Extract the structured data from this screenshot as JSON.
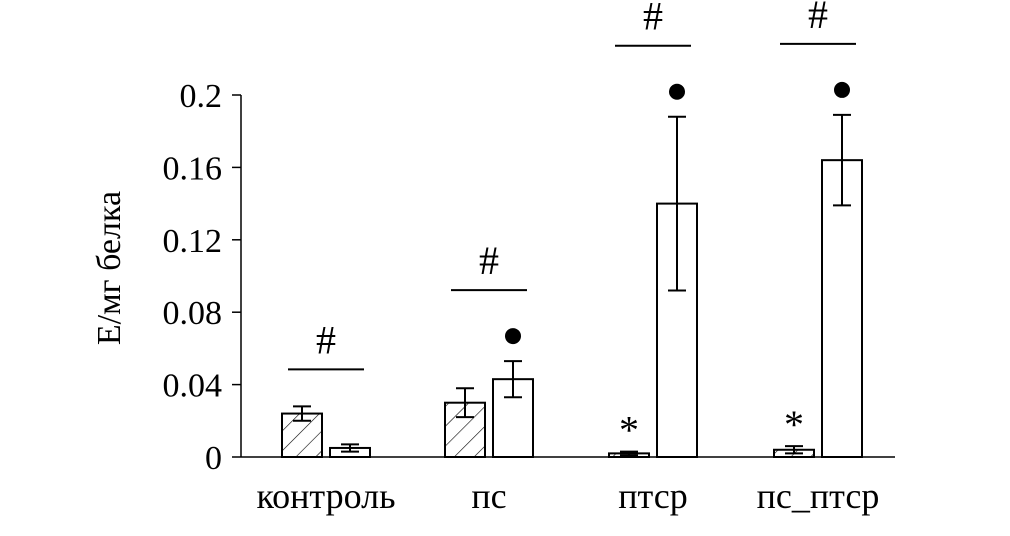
{
  "chart_data": {
    "type": "bar",
    "title": "",
    "xlabel": "",
    "ylabel": "Е/мг белка",
    "ylim": [
      0,
      0.2
    ],
    "yticks": [
      0,
      0.04,
      0.08,
      0.12,
      0.16,
      0.2
    ],
    "ytick_labels": [
      "0",
      "0.04",
      "0.08",
      "0.12",
      "0.16",
      "0.2"
    ],
    "categories": [
      "контроль",
      "пс",
      "птср",
      "пс_птср"
    ],
    "series": [
      {
        "pattern": "hatched",
        "values": [
          0.024,
          0.03,
          0.002,
          0.004
        ],
        "errors": [
          0.004,
          0.008,
          0.001,
          0.002
        ],
        "markers": [
          "",
          "",
          "*",
          "*"
        ]
      },
      {
        "pattern": "plain",
        "values": [
          0.005,
          0.043,
          0.14,
          0.164
        ],
        "errors": [
          0.002,
          0.01,
          0.048,
          0.025
        ],
        "markers": [
          "",
          "●",
          "●",
          "●"
        ]
      }
    ],
    "group_annotations": [
      "#",
      "#",
      "#",
      "#"
    ],
    "grid": false,
    "legend": "none",
    "colors": {
      "bar_fill": "#ffffff",
      "stroke": "#000000",
      "hatch": "#000000"
    }
  }
}
